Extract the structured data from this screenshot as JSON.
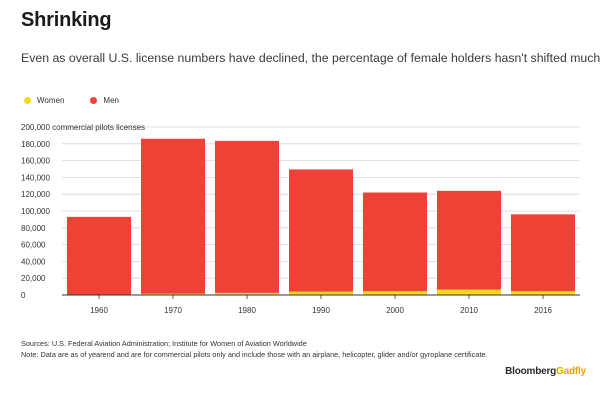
{
  "title": "Shrinking",
  "subtitle": "Even as overall U.S. license numbers have declined, the percentage of female holders hasn't shifted much",
  "sources": "Sources: U.S. Federal Aviation Administration; Institute for Women of Aviation Worldwide",
  "note": "Note: Data are as of yearend and are for commercial pilots only and include those with an airplane, helicopter, glider and/or gyroplane certificate.",
  "brand": {
    "part1": "Bloomberg",
    "part2": "Gadfly"
  },
  "colors": {
    "women": "#f9d71c",
    "men": "#ef4136",
    "grid": "#d8d8d8",
    "axis": "#333333",
    "brand_accent": "#e8a500"
  },
  "chart_data": {
    "type": "bar",
    "stacked": true,
    "categories": [
      "1960",
      "1970",
      "1980",
      "1990",
      "2000",
      "2010",
      "2016"
    ],
    "series": [
      {
        "name": "Women",
        "values": [
          500,
          1500,
          2500,
          4000,
          4500,
          6500,
          4500
        ]
      },
      {
        "name": "Men",
        "values": [
          92500,
          184500,
          181000,
          145500,
          117500,
          117500,
          91500
        ]
      }
    ],
    "ylabel": "commercial pilots licenses",
    "ylim": [
      0,
      200000
    ],
    "yticks": [
      0,
      20000,
      40000,
      60000,
      80000,
      100000,
      120000,
      140000,
      160000,
      180000,
      200000
    ],
    "ytick_labels": [
      "0",
      "20,000",
      "40,000",
      "60,000",
      "80,000",
      "100,000",
      "120,000",
      "140,000",
      "160,000",
      "180,000",
      "200,000 commercial pilots licenses"
    ],
    "legend": "top-left"
  }
}
